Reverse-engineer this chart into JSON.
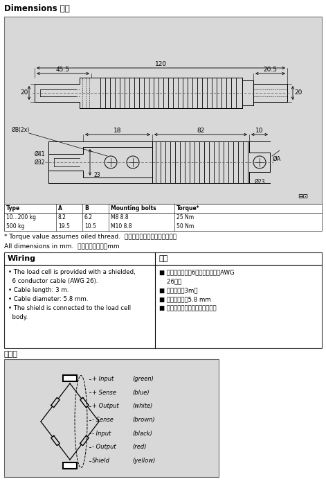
{
  "title": "Dimensions 尺寸",
  "section_wiring_title": "接线图",
  "wiring_title_en": "Wiring",
  "wiring_title_cn": "连接",
  "wiring_en_lines": [
    "• The load cell is provided with a shielded,",
    "  6 conductor cable (AWG 26).",
    "• Cable length: 3 m.",
    "• Cable diameter: 5.8 mm.",
    "• The shield is connected to the load cell",
    "  body."
  ],
  "wiring_cn_lines": [
    "■ 称量传感器专用6芯屏蔽电缆线（AWG",
    "    26）。",
    "■ 电缆长度：3m。",
    "■ 电缆直径为：5.8 mm",
    "■ 屏蔽线与称量传感器本体相连。"
  ],
  "note1": "* Torque value assumes oiled thread.  力矩值是假设在油螺纹情况下。",
  "note2": "All dimensions in mm.  所有尺寸单位为：mm",
  "table_cols": [
    "Type",
    "A",
    "B",
    "Mounting bolts",
    "Torque*"
  ],
  "table_data": [
    [
      "10...200 kg",
      "8.2",
      "6.2",
      "M8 8.8",
      "25 Nm"
    ],
    [
      "500 kg",
      "19.5",
      "10.5",
      "M10 8.8",
      "50 Nm"
    ]
  ],
  "wire_labels": [
    [
      "+ Input",
      "(green)"
    ],
    [
      "+ Sense",
      "(blue)"
    ],
    [
      "+ Output",
      "(white)"
    ],
    [
      "- Sense",
      "(brown)"
    ],
    [
      "- Input",
      "(black)"
    ],
    [
      "- Output",
      "(red)"
    ],
    [
      "Shield",
      "(yellow)"
    ]
  ],
  "drawing_bg": "#d8d8d8",
  "wiring_box_bg": "#d8d8d8"
}
